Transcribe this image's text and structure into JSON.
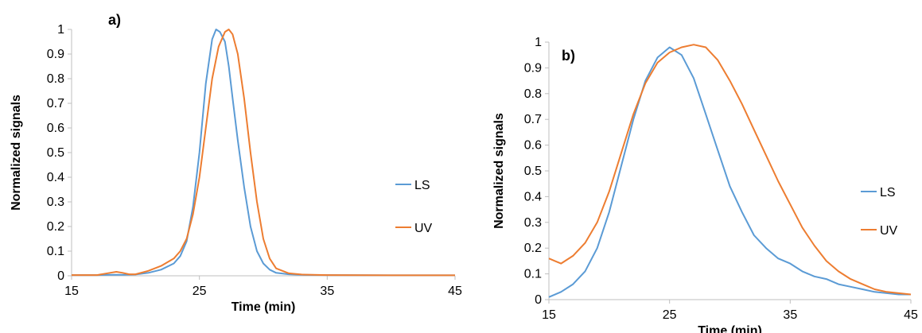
{
  "chart_data": [
    {
      "type": "line",
      "panel_label": "a)",
      "xlabel": "Time (min)",
      "ylabel": "Normalized signals",
      "xlim": [
        15,
        45
      ],
      "ylim": [
        0,
        1
      ],
      "xticks": [
        "15",
        "25",
        "35",
        "45"
      ],
      "yticks": [
        "0",
        "0.1",
        "0.2",
        "0.3",
        "0.4",
        "0.5",
        "0.6",
        "0.7",
        "0.8",
        "0.9",
        "1"
      ],
      "grid": false,
      "legend_position": "right",
      "series": [
        {
          "name": "LS",
          "color": "#5B9BD5",
          "x": [
            15,
            17,
            18,
            19,
            20,
            21,
            22,
            23,
            23.5,
            24,
            24.5,
            25,
            25.5,
            26,
            26.3,
            26.6,
            27,
            27.3,
            27.6,
            28,
            28.5,
            29,
            29.5,
            30,
            30.5,
            31,
            32,
            33,
            35,
            40,
            45
          ],
          "y": [
            0.003,
            0.003,
            0.004,
            0.004,
            0.005,
            0.012,
            0.025,
            0.05,
            0.08,
            0.14,
            0.28,
            0.5,
            0.78,
            0.96,
            1.0,
            0.99,
            0.95,
            0.85,
            0.72,
            0.55,
            0.36,
            0.2,
            0.1,
            0.05,
            0.025,
            0.012,
            0.006,
            0.004,
            0.003,
            0.002,
            0.002
          ]
        },
        {
          "name": "UV",
          "color": "#ED7D31",
          "x": [
            15,
            17,
            18,
            18.5,
            19,
            19.5,
            20,
            21,
            22,
            23,
            23.5,
            24,
            24.5,
            25,
            25.5,
            26,
            26.5,
            27,
            27.3,
            27.6,
            28,
            28.5,
            29,
            29.5,
            30,
            30.5,
            31,
            32,
            33,
            35,
            40,
            45
          ],
          "y": [
            0.003,
            0.003,
            0.012,
            0.016,
            0.012,
            0.006,
            0.006,
            0.02,
            0.04,
            0.07,
            0.1,
            0.15,
            0.25,
            0.4,
            0.6,
            0.8,
            0.93,
            0.99,
            1.0,
            0.98,
            0.9,
            0.72,
            0.5,
            0.3,
            0.15,
            0.07,
            0.03,
            0.01,
            0.005,
            0.003,
            0.002,
            0.002
          ]
        }
      ]
    },
    {
      "type": "line",
      "panel_label": "b)",
      "xlabel": "Time (min)",
      "ylabel": "Normalized signals",
      "xlim": [
        15,
        45
      ],
      "ylim": [
        0,
        1
      ],
      "xticks": [
        "15",
        "25",
        "35",
        "45"
      ],
      "yticks": [
        "0",
        "0.1",
        "0.2",
        "0.3",
        "0.4",
        "0.5",
        "0.6",
        "0.7",
        "0.8",
        "0.9",
        "1"
      ],
      "grid": false,
      "legend_position": "right",
      "series": [
        {
          "name": "LS",
          "color": "#5B9BD5",
          "x": [
            15,
            16,
            17,
            18,
            19,
            20,
            21,
            22,
            23,
            24,
            25,
            26,
            27,
            28,
            29,
            30,
            31,
            32,
            33,
            34,
            35,
            36,
            37,
            38,
            39,
            40,
            41,
            42,
            43,
            44,
            45
          ],
          "y": [
            0.01,
            0.03,
            0.06,
            0.11,
            0.2,
            0.34,
            0.52,
            0.7,
            0.85,
            0.94,
            0.98,
            0.95,
            0.86,
            0.72,
            0.58,
            0.44,
            0.34,
            0.25,
            0.2,
            0.16,
            0.14,
            0.11,
            0.09,
            0.08,
            0.06,
            0.05,
            0.04,
            0.03,
            0.025,
            0.02,
            0.02
          ]
        },
        {
          "name": "UV",
          "color": "#ED7D31",
          "x": [
            15,
            15.5,
            16,
            17,
            18,
            19,
            20,
            21,
            22,
            23,
            24,
            25,
            26,
            27,
            28,
            29,
            30,
            31,
            32,
            33,
            34,
            35,
            36,
            37,
            38,
            39,
            40,
            41,
            42,
            43,
            44,
            45
          ],
          "y": [
            0.16,
            0.15,
            0.14,
            0.17,
            0.22,
            0.3,
            0.42,
            0.57,
            0.72,
            0.84,
            0.92,
            0.96,
            0.98,
            0.99,
            0.98,
            0.93,
            0.85,
            0.76,
            0.66,
            0.56,
            0.46,
            0.37,
            0.28,
            0.21,
            0.15,
            0.11,
            0.08,
            0.06,
            0.04,
            0.03,
            0.025,
            0.02
          ]
        }
      ]
    }
  ]
}
